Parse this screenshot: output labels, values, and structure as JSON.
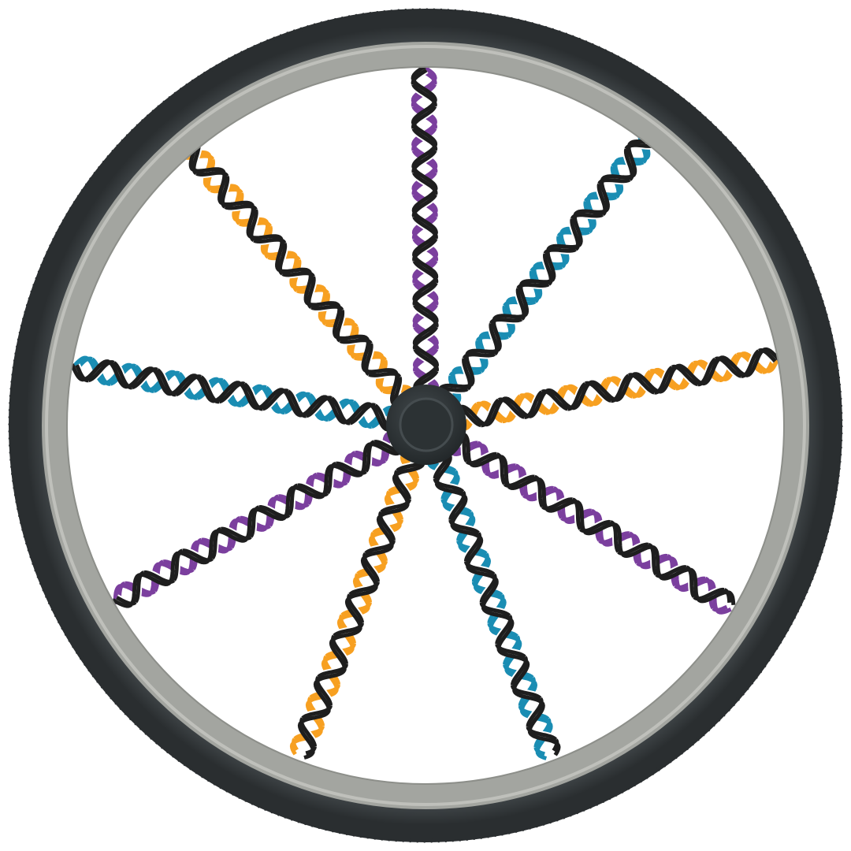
{
  "illustration": {
    "subject": "bicycle-wheel-with-dna-double-helix-spokes",
    "colors": {
      "tire": "#3a3f42",
      "tire_dark": "#2c3033",
      "rim": "#a3a5a0",
      "rim_light": "#bfc0bb",
      "hub": "#2f3436",
      "hub_inner": "#3b4245",
      "backbone": "#1e1e1e",
      "orange": "#f7a021",
      "purple": "#7b3f9e",
      "blue": "#1a8db3"
    },
    "spokes": [
      {
        "id": "spoke-up",
        "color": "purple"
      },
      {
        "id": "spoke-up-right",
        "color": "blue"
      },
      {
        "id": "spoke-right",
        "color": "orange"
      },
      {
        "id": "spoke-down-right",
        "color": "purple"
      },
      {
        "id": "spoke-down-right-steep",
        "color": "blue"
      },
      {
        "id": "spoke-down-left-steep",
        "color": "orange"
      },
      {
        "id": "spoke-down-left",
        "color": "purple"
      },
      {
        "id": "spoke-left",
        "color": "blue"
      },
      {
        "id": "spoke-up-left",
        "color": "orange"
      }
    ]
  }
}
